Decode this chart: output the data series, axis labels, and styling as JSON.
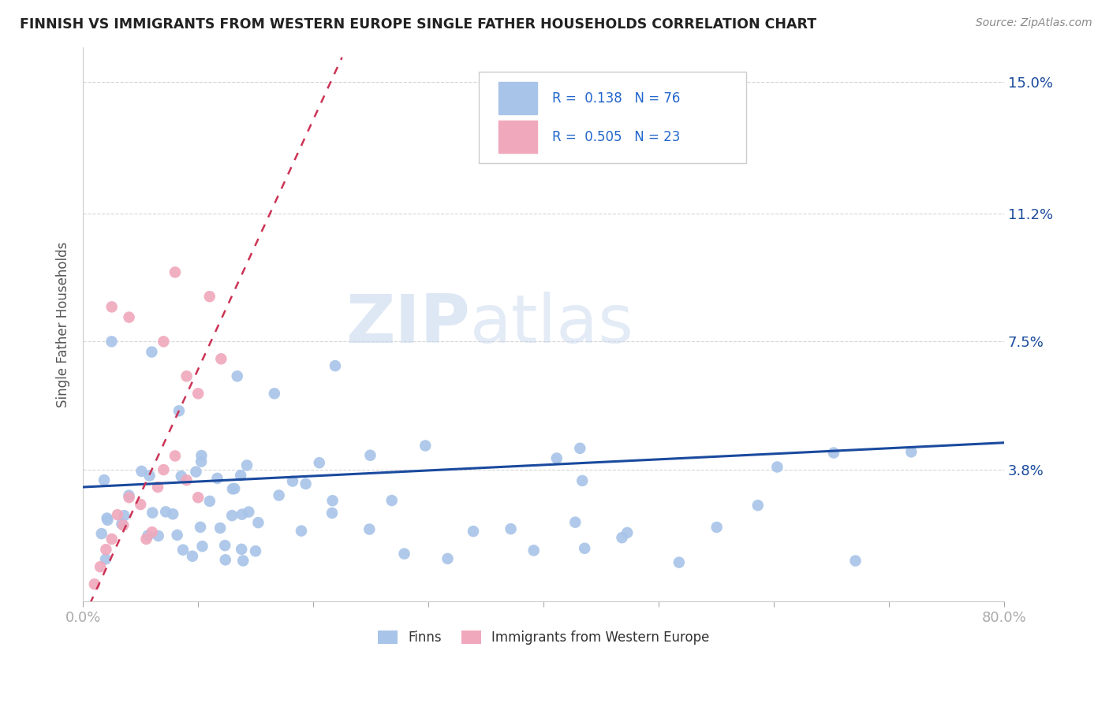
{
  "title": "FINNISH VS IMMIGRANTS FROM WESTERN EUROPE SINGLE FATHER HOUSEHOLDS CORRELATION CHART",
  "source": "Source: ZipAtlas.com",
  "ylabel": "Single Father Households",
  "xlabel": "",
  "xlim": [
    0.0,
    0.8
  ],
  "ylim": [
    0.0,
    0.16
  ],
  "yticks": [
    0.038,
    0.075,
    0.112,
    0.15
  ],
  "ytick_labels": [
    "3.8%",
    "7.5%",
    "11.2%",
    "15.0%"
  ],
  "xticks": [
    0.0,
    0.1,
    0.2,
    0.3,
    0.4,
    0.5,
    0.6,
    0.7,
    0.8
  ],
  "xtick_labels": [
    "0.0%",
    "",
    "",
    "",
    "",
    "",
    "",
    "",
    "80.0%"
  ],
  "color_finns": "#a8c4e8",
  "color_immigrants": "#f0a8bc",
  "color_line_finns": "#1a4a9e",
  "color_line_immigrants": "#cc3355",
  "color_legend_text": "#2266cc",
  "title_color": "#333333",
  "background_color": "#ffffff",
  "grid_color": "#cccccc",
  "finns_slope": 0.016,
  "finns_intercept": 0.033,
  "imm_slope": 0.72,
  "imm_intercept": -0.005,
  "imm_line_x_start": 0.0,
  "imm_line_x_end": 0.5
}
